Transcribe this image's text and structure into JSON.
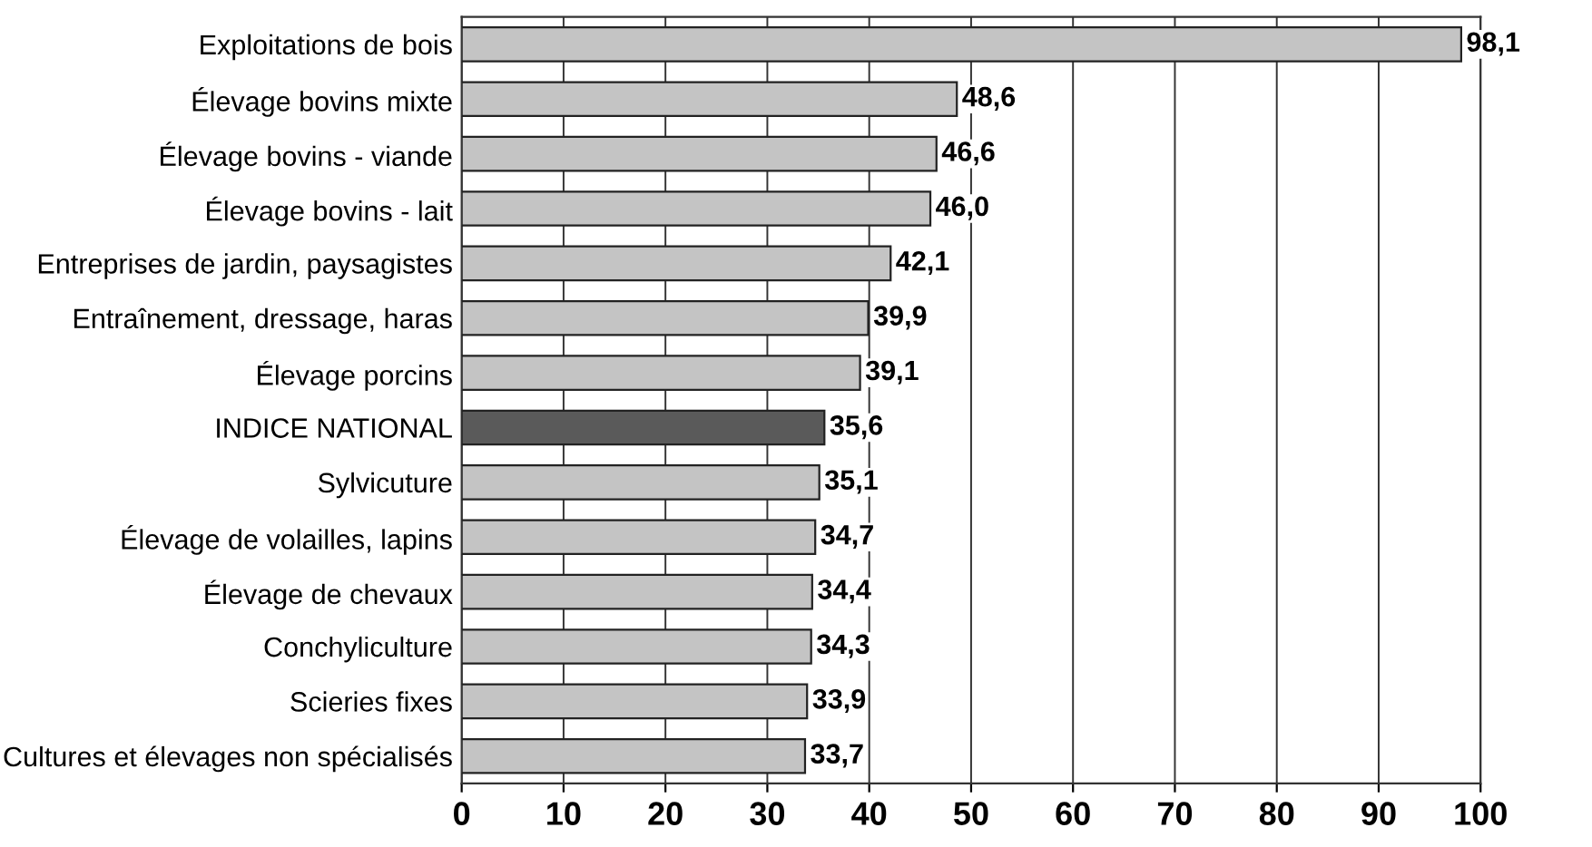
{
  "chart_data": {
    "type": "bar",
    "orientation": "horizontal",
    "categories": [
      "Exploitations de bois",
      "Élevage bovins mixte",
      "Élevage bovins - viande",
      "Élevage bovins - lait",
      "Entreprises de jardin, paysagistes",
      "Entraînement, dressage, haras",
      "Élevage porcins",
      "INDICE NATIONAL",
      "Sylvicuture",
      "Élevage de volailles, lapins",
      "Élevage de chevaux",
      "Conchyliculture",
      "Scieries fixes",
      "Cultures et élevages non spécialisés"
    ],
    "values": [
      98.1,
      48.6,
      46.6,
      46.0,
      42.1,
      39.9,
      39.1,
      35.6,
      35.1,
      34.7,
      34.4,
      34.3,
      33.9,
      33.7
    ],
    "value_labels": [
      "98,1",
      "48,6",
      "46,6",
      "46,0",
      "42,1",
      "39,9",
      "39,1",
      "35,6",
      "35,1",
      "34,7",
      "34,4",
      "34,3",
      "33,9",
      "33,7"
    ],
    "colors": [
      "#c4c4c4",
      "#c4c4c4",
      "#c4c4c4",
      "#c4c4c4",
      "#c4c4c4",
      "#c4c4c4",
      "#c4c4c4",
      "#5a5a5a",
      "#c4c4c4",
      "#c4c4c4",
      "#c4c4c4",
      "#c4c4c4",
      "#c4c4c4",
      "#c4c4c4"
    ],
    "xlim": [
      0,
      100
    ],
    "xticks": [
      0,
      10,
      20,
      30,
      40,
      50,
      60,
      70,
      80,
      90,
      100
    ],
    "grid": "x"
  }
}
